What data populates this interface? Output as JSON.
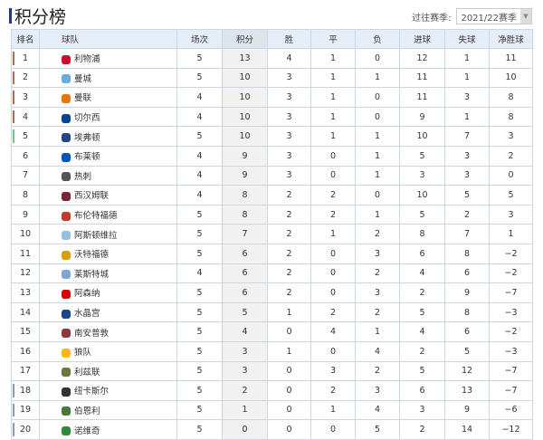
{
  "header": {
    "title": "积分榜",
    "season_label": "过往赛季:",
    "season_value": "2021/22赛季"
  },
  "columns": [
    "排名",
    "球队",
    "场次",
    "积分",
    "胜",
    "平",
    "负",
    "进球",
    "失球",
    "净胜球"
  ],
  "colors": {
    "champions": "#b66a47",
    "europa": "#7cbf7c",
    "relegation": "#8a9bb0"
  },
  "rows": [
    {
      "rank": "1",
      "team": "利物浦",
      "played": "5",
      "points": "13",
      "w": "4",
      "d": "1",
      "l": "0",
      "gf": "12",
      "ga": "1",
      "gd": "11",
      "zone": "champions",
      "logo": "#c8102e"
    },
    {
      "rank": "2",
      "team": "曼城",
      "played": "5",
      "points": "10",
      "w": "3",
      "d": "1",
      "l": "1",
      "gf": "11",
      "ga": "1",
      "gd": "10",
      "zone": "champions",
      "logo": "#6cabdd"
    },
    {
      "rank": "3",
      "team": "曼联",
      "played": "4",
      "points": "10",
      "w": "3",
      "d": "1",
      "l": "0",
      "gf": "11",
      "ga": "3",
      "gd": "8",
      "zone": "champions",
      "logo": "#e07b00"
    },
    {
      "rank": "4",
      "team": "切尔西",
      "played": "4",
      "points": "10",
      "w": "3",
      "d": "1",
      "l": "0",
      "gf": "9",
      "ga": "1",
      "gd": "8",
      "zone": "champions",
      "logo": "#034694"
    },
    {
      "rank": "5",
      "team": "埃弗顿",
      "played": "5",
      "points": "10",
      "w": "3",
      "d": "1",
      "l": "1",
      "gf": "10",
      "ga": "7",
      "gd": "3",
      "zone": "europa",
      "logo": "#274488"
    },
    {
      "rank": "6",
      "team": "布莱顿",
      "played": "4",
      "points": "9",
      "w": "3",
      "d": "0",
      "l": "1",
      "gf": "5",
      "ga": "3",
      "gd": "2",
      "zone": "",
      "logo": "#0057b8"
    },
    {
      "rank": "7",
      "team": "热刺",
      "played": "4",
      "points": "9",
      "w": "3",
      "d": "0",
      "l": "1",
      "gf": "3",
      "ga": "3",
      "gd": "0",
      "zone": "",
      "logo": "#555555"
    },
    {
      "rank": "8",
      "team": "西汉姆联",
      "played": "4",
      "points": "8",
      "w": "2",
      "d": "2",
      "l": "0",
      "gf": "10",
      "ga": "5",
      "gd": "5",
      "zone": "",
      "logo": "#7a263a"
    },
    {
      "rank": "9",
      "team": "布伦特福德",
      "played": "5",
      "points": "8",
      "w": "2",
      "d": "2",
      "l": "1",
      "gf": "5",
      "ga": "2",
      "gd": "3",
      "zone": "",
      "logo": "#c0392b"
    },
    {
      "rank": "10",
      "team": "阿斯顿维拉",
      "played": "5",
      "points": "7",
      "w": "2",
      "d": "1",
      "l": "2",
      "gf": "8",
      "ga": "7",
      "gd": "1",
      "zone": "",
      "logo": "#95bfe5"
    },
    {
      "rank": "11",
      "team": "沃特福德",
      "played": "5",
      "points": "6",
      "w": "2",
      "d": "0",
      "l": "3",
      "gf": "6",
      "ga": "8",
      "gd": "−2",
      "zone": "",
      "logo": "#d4a017"
    },
    {
      "rank": "12",
      "team": "莱斯特城",
      "played": "4",
      "points": "6",
      "w": "2",
      "d": "0",
      "l": "2",
      "gf": "4",
      "ga": "6",
      "gd": "−2",
      "zone": "",
      "logo": "#7fa7d6"
    },
    {
      "rank": "13",
      "team": "阿森纳",
      "played": "5",
      "points": "6",
      "w": "2",
      "d": "0",
      "l": "3",
      "gf": "2",
      "ga": "9",
      "gd": "−7",
      "zone": "",
      "logo": "#db0007"
    },
    {
      "rank": "14",
      "team": "水晶宫",
      "played": "5",
      "points": "5",
      "w": "1",
      "d": "2",
      "l": "2",
      "gf": "5",
      "ga": "8",
      "gd": "−3",
      "zone": "",
      "logo": "#1b458f"
    },
    {
      "rank": "15",
      "team": "南安普敦",
      "played": "5",
      "points": "4",
      "w": "0",
      "d": "4",
      "l": "1",
      "gf": "4",
      "ga": "6",
      "gd": "−2",
      "zone": "",
      "logo": "#8b3a3a"
    },
    {
      "rank": "16",
      "team": "狼队",
      "played": "5",
      "points": "3",
      "w": "1",
      "d": "0",
      "l": "4",
      "gf": "2",
      "ga": "5",
      "gd": "−3",
      "zone": "",
      "logo": "#fdb913"
    },
    {
      "rank": "17",
      "team": "利兹联",
      "played": "5",
      "points": "3",
      "w": "0",
      "d": "3",
      "l": "2",
      "gf": "5",
      "ga": "12",
      "gd": "−7",
      "zone": "",
      "logo": "#6b7a3a"
    },
    {
      "rank": "18",
      "team": "纽卡斯尔",
      "played": "5",
      "points": "2",
      "w": "0",
      "d": "2",
      "l": "3",
      "gf": "6",
      "ga": "13",
      "gd": "−7",
      "zone": "relegation",
      "logo": "#333333"
    },
    {
      "rank": "19",
      "team": "伯恩利",
      "played": "5",
      "points": "1",
      "w": "0",
      "d": "1",
      "l": "4",
      "gf": "3",
      "ga": "9",
      "gd": "−6",
      "zone": "relegation",
      "logo": "#4a7a3a"
    },
    {
      "rank": "20",
      "team": "诺维奇",
      "played": "5",
      "points": "0",
      "w": "0",
      "d": "0",
      "l": "5",
      "gf": "2",
      "ga": "14",
      "gd": "−12",
      "zone": "relegation",
      "logo": "#2e8b3a"
    }
  ]
}
